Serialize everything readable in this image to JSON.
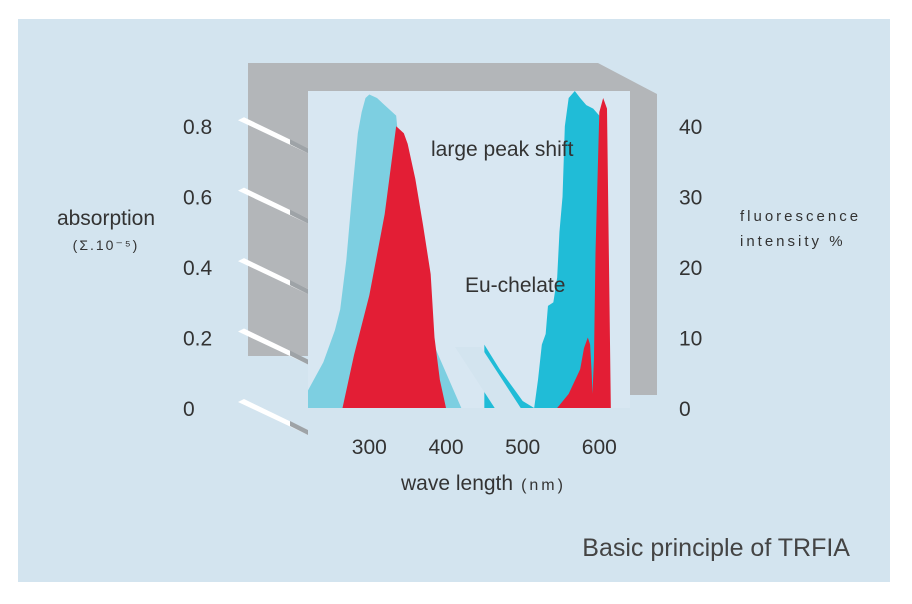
{
  "chart_data": {
    "type": "area",
    "caption": "Basic principle of TRFIA",
    "xlabel": "wave length",
    "xlabel_unit": "(nm)",
    "x_ticks": [
      "300",
      "400",
      "500",
      "600"
    ],
    "xlim": [
      220,
      640
    ],
    "left_axis": {
      "label": "absorption",
      "unit": "(Σ.10⁻⁵)",
      "ticks": [
        "0.8",
        "0.6",
        "0.4",
        "0.2",
        "0"
      ],
      "ylim": [
        0,
        0.9
      ]
    },
    "right_axis": {
      "label_line1": "fluorescence",
      "label_line2": "intensity %",
      "ticks": [
        "40",
        "30",
        "20",
        "10",
        "0"
      ],
      "ylim": [
        0,
        45
      ]
    },
    "annotations": {
      "peak_shift": "large peak shift",
      "chelate": "Eu-chelate"
    },
    "series": [
      {
        "role": "absorption-light",
        "axis": "left",
        "color": "#7dcfe1",
        "x": [
          220,
          240,
          255,
          262,
          270,
          278,
          285,
          290,
          295,
          300,
          310,
          320,
          330,
          335,
          345,
          350,
          380,
          400,
          420
        ],
        "y": [
          0.05,
          0.13,
          0.22,
          0.28,
          0.42,
          0.62,
          0.78,
          0.84,
          0.88,
          0.89,
          0.88,
          0.86,
          0.84,
          0.83,
          0.6,
          0.45,
          0.2,
          0.1,
          0
        ]
      },
      {
        "role": "absorption",
        "axis": "left",
        "color": "#e31e35",
        "x": [
          265,
          280,
          300,
          320,
          335,
          345,
          350,
          360,
          370,
          375,
          380,
          385,
          392,
          400
        ],
        "y": [
          0,
          0.15,
          0.32,
          0.55,
          0.8,
          0.78,
          0.75,
          0.65,
          0.52,
          0.45,
          0.38,
          0.2,
          0.08,
          0
        ]
      },
      {
        "role": "fluorescence",
        "axis": "right",
        "color": "#20bcd7",
        "x": [
          450,
          470,
          490,
          500,
          515,
          520,
          525,
          530,
          533,
          540,
          545,
          548,
          552,
          555,
          560,
          568,
          575,
          583,
          592,
          600
        ],
        "y": [
          9,
          5.5,
          2.5,
          1,
          0,
          4,
          9,
          10.5,
          14.5,
          15,
          18.5,
          25,
          30,
          40,
          44,
          45,
          44,
          43,
          42.5,
          41.5
        ]
      },
      {
        "role": "eu-emission",
        "axis": "right",
        "color": "#e31e35",
        "x": [
          545,
          560,
          575,
          580,
          585,
          588,
          590,
          591,
          593,
          595,
          600,
          605,
          610,
          615
        ],
        "y": [
          0,
          2,
          5.5,
          8.5,
          10,
          9,
          5,
          2,
          7,
          22,
          42,
          44,
          42.5,
          0
        ]
      }
    ]
  }
}
